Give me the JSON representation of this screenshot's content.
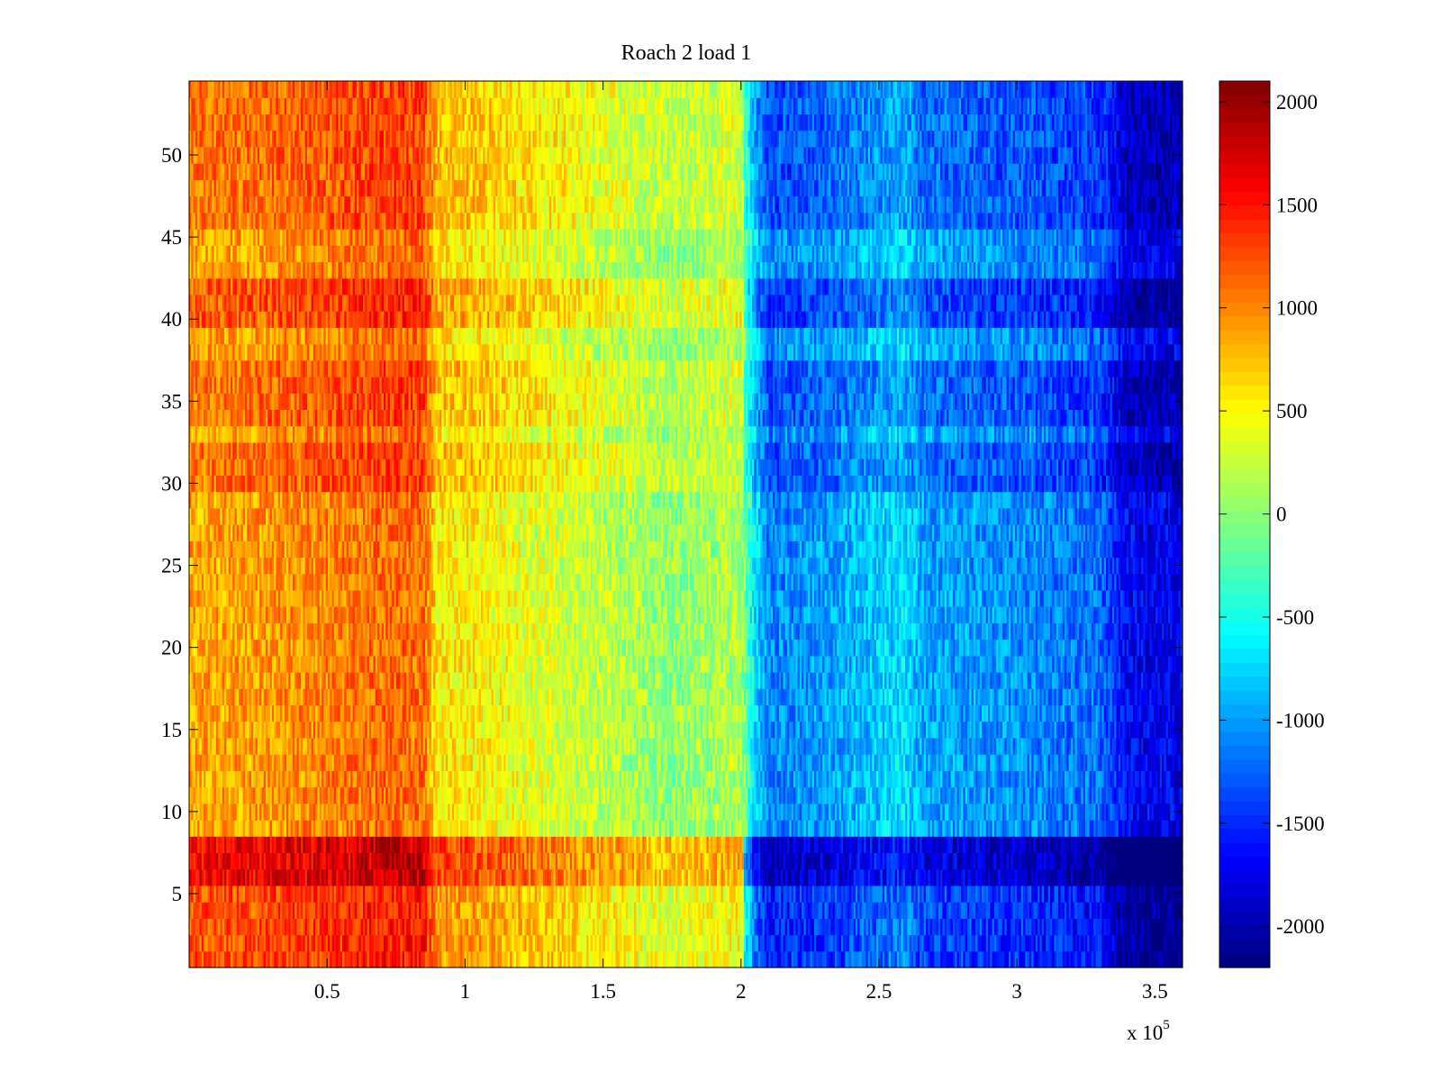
{
  "chart_data": {
    "type": "heatmap",
    "title": "Roach 2 load 1",
    "xlabel": "",
    "ylabel": "",
    "x_multiplier_label": "x 10",
    "x_multiplier_exponent": "5",
    "xlim": [
      0,
      3.6
    ],
    "ylim": [
      0.5,
      54.5
    ],
    "x_ticks": [
      0.5,
      1,
      1.5,
      2,
      2.5,
      3,
      3.5
    ],
    "x_tick_labels": [
      "0.5",
      "1",
      "1.5",
      "2",
      "2.5",
      "3",
      "3.5"
    ],
    "y_ticks": [
      5,
      10,
      15,
      20,
      25,
      30,
      35,
      40,
      45,
      50
    ],
    "y_tick_labels": [
      "5",
      "10",
      "15",
      "20",
      "25",
      "30",
      "35",
      "40",
      "45",
      "50"
    ],
    "rows": 54,
    "colormap": "jet",
    "clim": [
      -2200,
      2100
    ],
    "colorbar": {
      "ticks": [
        2000,
        1500,
        1000,
        500,
        0,
        -500,
        -1000,
        -1500,
        -2000
      ],
      "tick_labels": [
        "2000",
        "1500",
        "1000",
        "500",
        "0",
        "-500",
        "-1000",
        "-1500",
        "-2000"
      ]
    },
    "trend_profile": {
      "x": [
        0,
        0.25,
        0.5,
        0.7,
        0.85,
        0.9,
        1.0,
        1.5,
        1.75,
        2.0,
        2.05,
        2.1,
        2.3,
        2.6,
        2.65,
        3.0,
        3.3,
        3.4,
        3.6
      ],
      "value": [
        850,
        900,
        1000,
        1100,
        1100,
        550,
        550,
        200,
        0,
        150,
        -700,
        -1100,
        -1000,
        -700,
        -950,
        -1050,
        -1200,
        -1700,
        -1750
      ]
    },
    "row_offsets": [
      {
        "rows": [
          1,
          2,
          3,
          4,
          5
        ],
        "offset": 350
      },
      {
        "rows": [
          6,
          7,
          8
        ],
        "offset": 700
      },
      {
        "rows": [
          30,
          31,
          32
        ],
        "offset": 200
      },
      {
        "rows": [
          34,
          35,
          36,
          37
        ],
        "offset": 200
      },
      {
        "rows": [
          40,
          41,
          42
        ],
        "offset": 300
      },
      {
        "rows": [
          46,
          47,
          48,
          49,
          50,
          51,
          52,
          53,
          54
        ],
        "offset": 200
      }
    ]
  }
}
